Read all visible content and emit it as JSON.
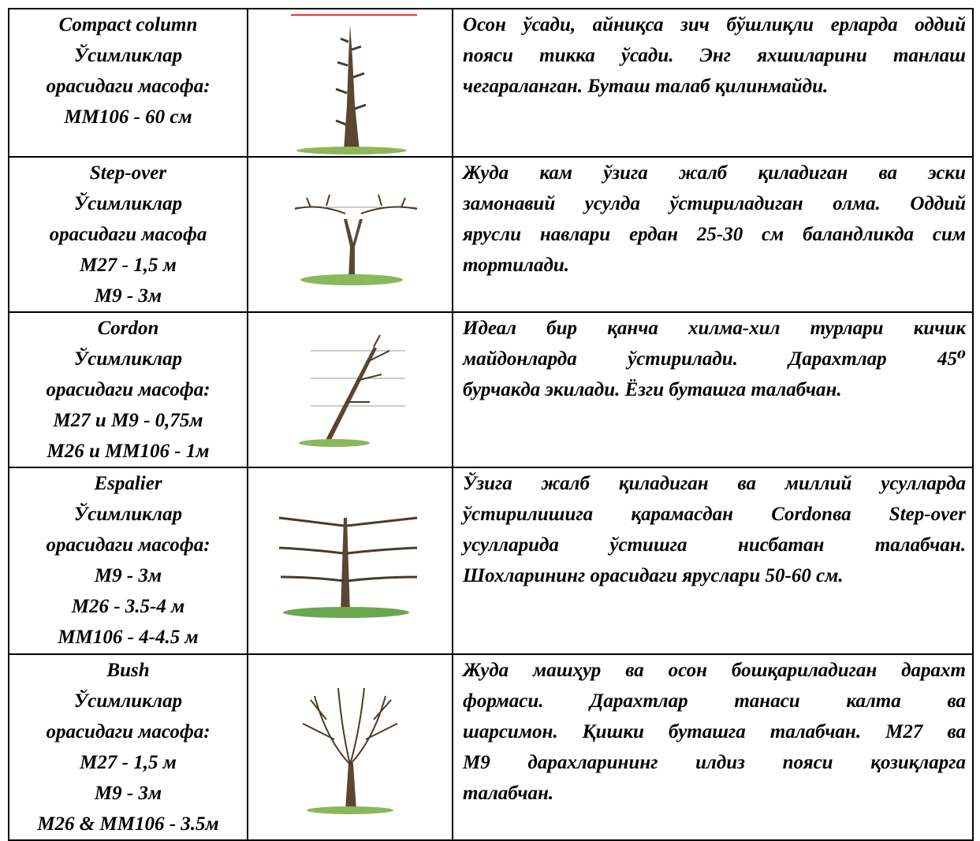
{
  "table": {
    "rows": [
      {
        "left": [
          "Compact column",
          "Ўсимликлар",
          "орасидаги масофа:",
          "MM106 - 60 см"
        ],
        "description": [
          "Осон ўсади, айниқса зич бўшлиқли ерларда оддий",
          "пояси тикка ўсади. Энг яхшиларини танлаш",
          "чегараланган. Буташ талаб қилинмайди."
        ]
      },
      {
        "left": [
          "Step-over",
          "Ўсимликлар",
          "орасидаги масофа",
          "M27 - 1,5 м",
          "M9 - 3м"
        ],
        "description": [
          "Жуда кам ўзига жалб қиладиган ва эски",
          "замонавий усулда ўстириладиган олма. Оддий",
          "ярусли навлари ердан 25-30 см баландликда сим",
          "тортилади."
        ]
      },
      {
        "left": [
          "Cordon",
          "Ўсимликлар",
          "орасидаги масофа:",
          "M27 и M9 - 0,75м",
          "M26 и MM106 - 1м"
        ],
        "description": [
          "Идеал бир қанча хилма-хил турлари кичик",
          "майдонларда ўстирилади. Дарахтлар 45⁰",
          "бурчакда экилади. Ёзги буташга талабчан."
        ]
      },
      {
        "left": [
          "Espalier",
          "Ўсимликлар",
          "орасидаги масофа:",
          "M9 - 3м",
          "M26 - 3.5-4 м",
          "MM106 - 4-4.5 м"
        ],
        "description": [
          "Ўзига жалб қиладиган ва миллий усулларда",
          "ўстирилишига қарамасдан Cordonва Step-over",
          "усулларида ўстишга нисбатан талабчан.",
          "Шохларининг орасидаги яруслари 50-60 см."
        ]
      },
      {
        "left": [
          "Bush",
          "Ўсимликлар",
          "орасидаги масофа:",
          "M27 - 1,5 м",
          "M9 - 3м",
          "M26 & MM106 - 3.5м"
        ],
        "description": [
          "Жуда машҳур ва осон бошқариладиган дарахт",
          "формаси. Дарахтлар танаси калта ва",
          "шарсимон. Қишки буташга талабчан. М27 ва",
          "М9 дарахларининг илдиз пояси қозиқларга",
          "талабчан."
        ]
      }
    ]
  }
}
